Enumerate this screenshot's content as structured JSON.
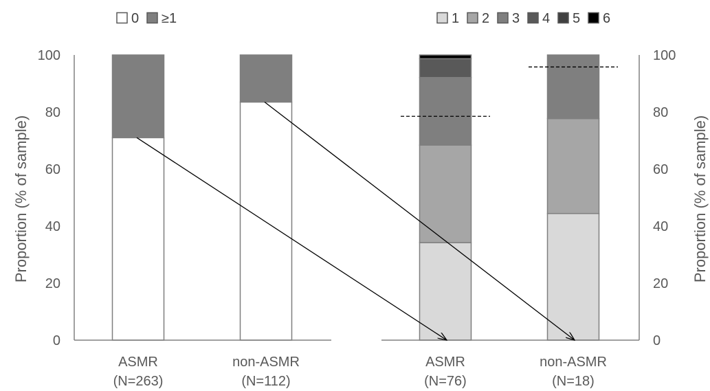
{
  "chart_data": [
    {
      "type": "bar",
      "stacked": true,
      "ylabel": "Proportion (% of sample)",
      "ylim": [
        0,
        100
      ],
      "yticks": [
        0,
        20,
        40,
        60,
        80,
        100
      ],
      "y_axis": "left",
      "legend_placement": "top-left",
      "categories": [
        "ASMR\n(N=263)",
        "non-ASMR\n(N=112)"
      ],
      "series": [
        {
          "name": "0",
          "values": [
            71,
            83.5
          ],
          "color": "#ffffff"
        },
        {
          "name": "≥1",
          "values": [
            29,
            16.5
          ],
          "color": "#7f7f7f"
        }
      ]
    },
    {
      "type": "bar",
      "stacked": true,
      "ylabel": "Proportion (% of sample)",
      "ylim": [
        0,
        100
      ],
      "yticks": [
        0,
        20,
        40,
        60,
        80,
        100
      ],
      "y_axis": "right",
      "legend_placement": "top-right",
      "categories": [
        "ASMR\n(N=76)",
        "non-ASMR\n(N=18)"
      ],
      "series": [
        {
          "name": "1",
          "values": [
            34.2,
            44.4
          ],
          "color": "#d9d9d9"
        },
        {
          "name": "2",
          "values": [
            34.2,
            33.3
          ],
          "color": "#a6a6a6"
        },
        {
          "name": "3",
          "values": [
            23.7,
            22.3
          ],
          "color": "#7f7f7f"
        },
        {
          "name": "4",
          "values": [
            6.6,
            0
          ],
          "color": "#595959"
        },
        {
          "name": "5",
          "values": [
            0,
            0
          ],
          "color": "#404040"
        },
        {
          "name": "6",
          "values": [
            1.3,
            0
          ],
          "color": "#000000"
        }
      ],
      "reference_lines": [
        78.5,
        95.8
      ]
    }
  ]
}
